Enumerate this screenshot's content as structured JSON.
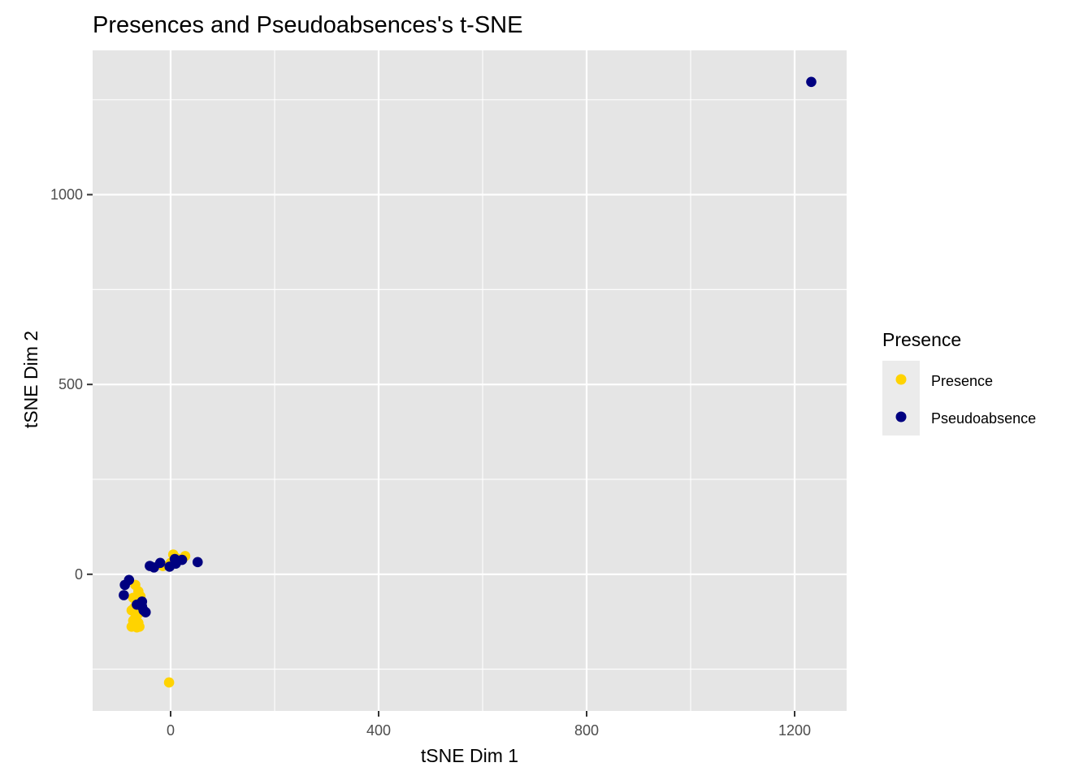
{
  "chart_data": {
    "type": "scatter",
    "title": "Presences and Pseudoabsences's t-SNE",
    "xlabel": "tSNE Dim 1",
    "ylabel": "tSNE Dim 2",
    "xlim": [
      -150,
      1300
    ],
    "ylim": [
      -360,
      1380
    ],
    "x_ticks": [
      0,
      400,
      800,
      1200
    ],
    "y_ticks": [
      0,
      500,
      1000
    ],
    "x_tick_labels": [
      "0",
      "400",
      "800",
      "1200"
    ],
    "y_tick_labels": [
      "0",
      "500",
      "1000"
    ],
    "grid": true,
    "legend": {
      "title": "Presence",
      "position": "right",
      "entries": [
        "Presence",
        "Pseudoabsence"
      ]
    },
    "colors": {
      "panel": "#e5e5e5",
      "grid": "#ffffff"
    },
    "series": [
      {
        "name": "Presence",
        "color": "#ffd300",
        "points": [
          [
            5,
            52
          ],
          [
            28,
            48
          ],
          [
            12,
            42
          ],
          [
            -15,
            22
          ],
          [
            0,
            30
          ],
          [
            -68,
            -28
          ],
          [
            -62,
            -45
          ],
          [
            -58,
            -58
          ],
          [
            -72,
            -62
          ],
          [
            -65,
            -72
          ],
          [
            -70,
            -88
          ],
          [
            -60,
            -92
          ],
          [
            -75,
            -95
          ],
          [
            -63,
            -105
          ],
          [
            -68,
            -115
          ],
          [
            -72,
            -122
          ],
          [
            -62,
            -128
          ],
          [
            -75,
            -138
          ],
          [
            -65,
            -140
          ],
          [
            -60,
            -138
          ],
          [
            -70,
            -132
          ],
          [
            -3,
            -285
          ]
        ]
      },
      {
        "name": "Pseudoabsence",
        "color": "#000080",
        "points": [
          [
            1232,
            1297
          ],
          [
            52,
            32
          ],
          [
            22,
            38
          ],
          [
            8,
            40
          ],
          [
            10,
            28
          ],
          [
            -2,
            20
          ],
          [
            -20,
            30
          ],
          [
            -32,
            18
          ],
          [
            -40,
            22
          ],
          [
            -88,
            -28
          ],
          [
            -80,
            -15
          ],
          [
            -90,
            -55
          ],
          [
            -55,
            -72
          ],
          [
            -65,
            -80
          ],
          [
            -55,
            -85
          ],
          [
            -48,
            -100
          ],
          [
            -52,
            -95
          ]
        ]
      }
    ]
  }
}
